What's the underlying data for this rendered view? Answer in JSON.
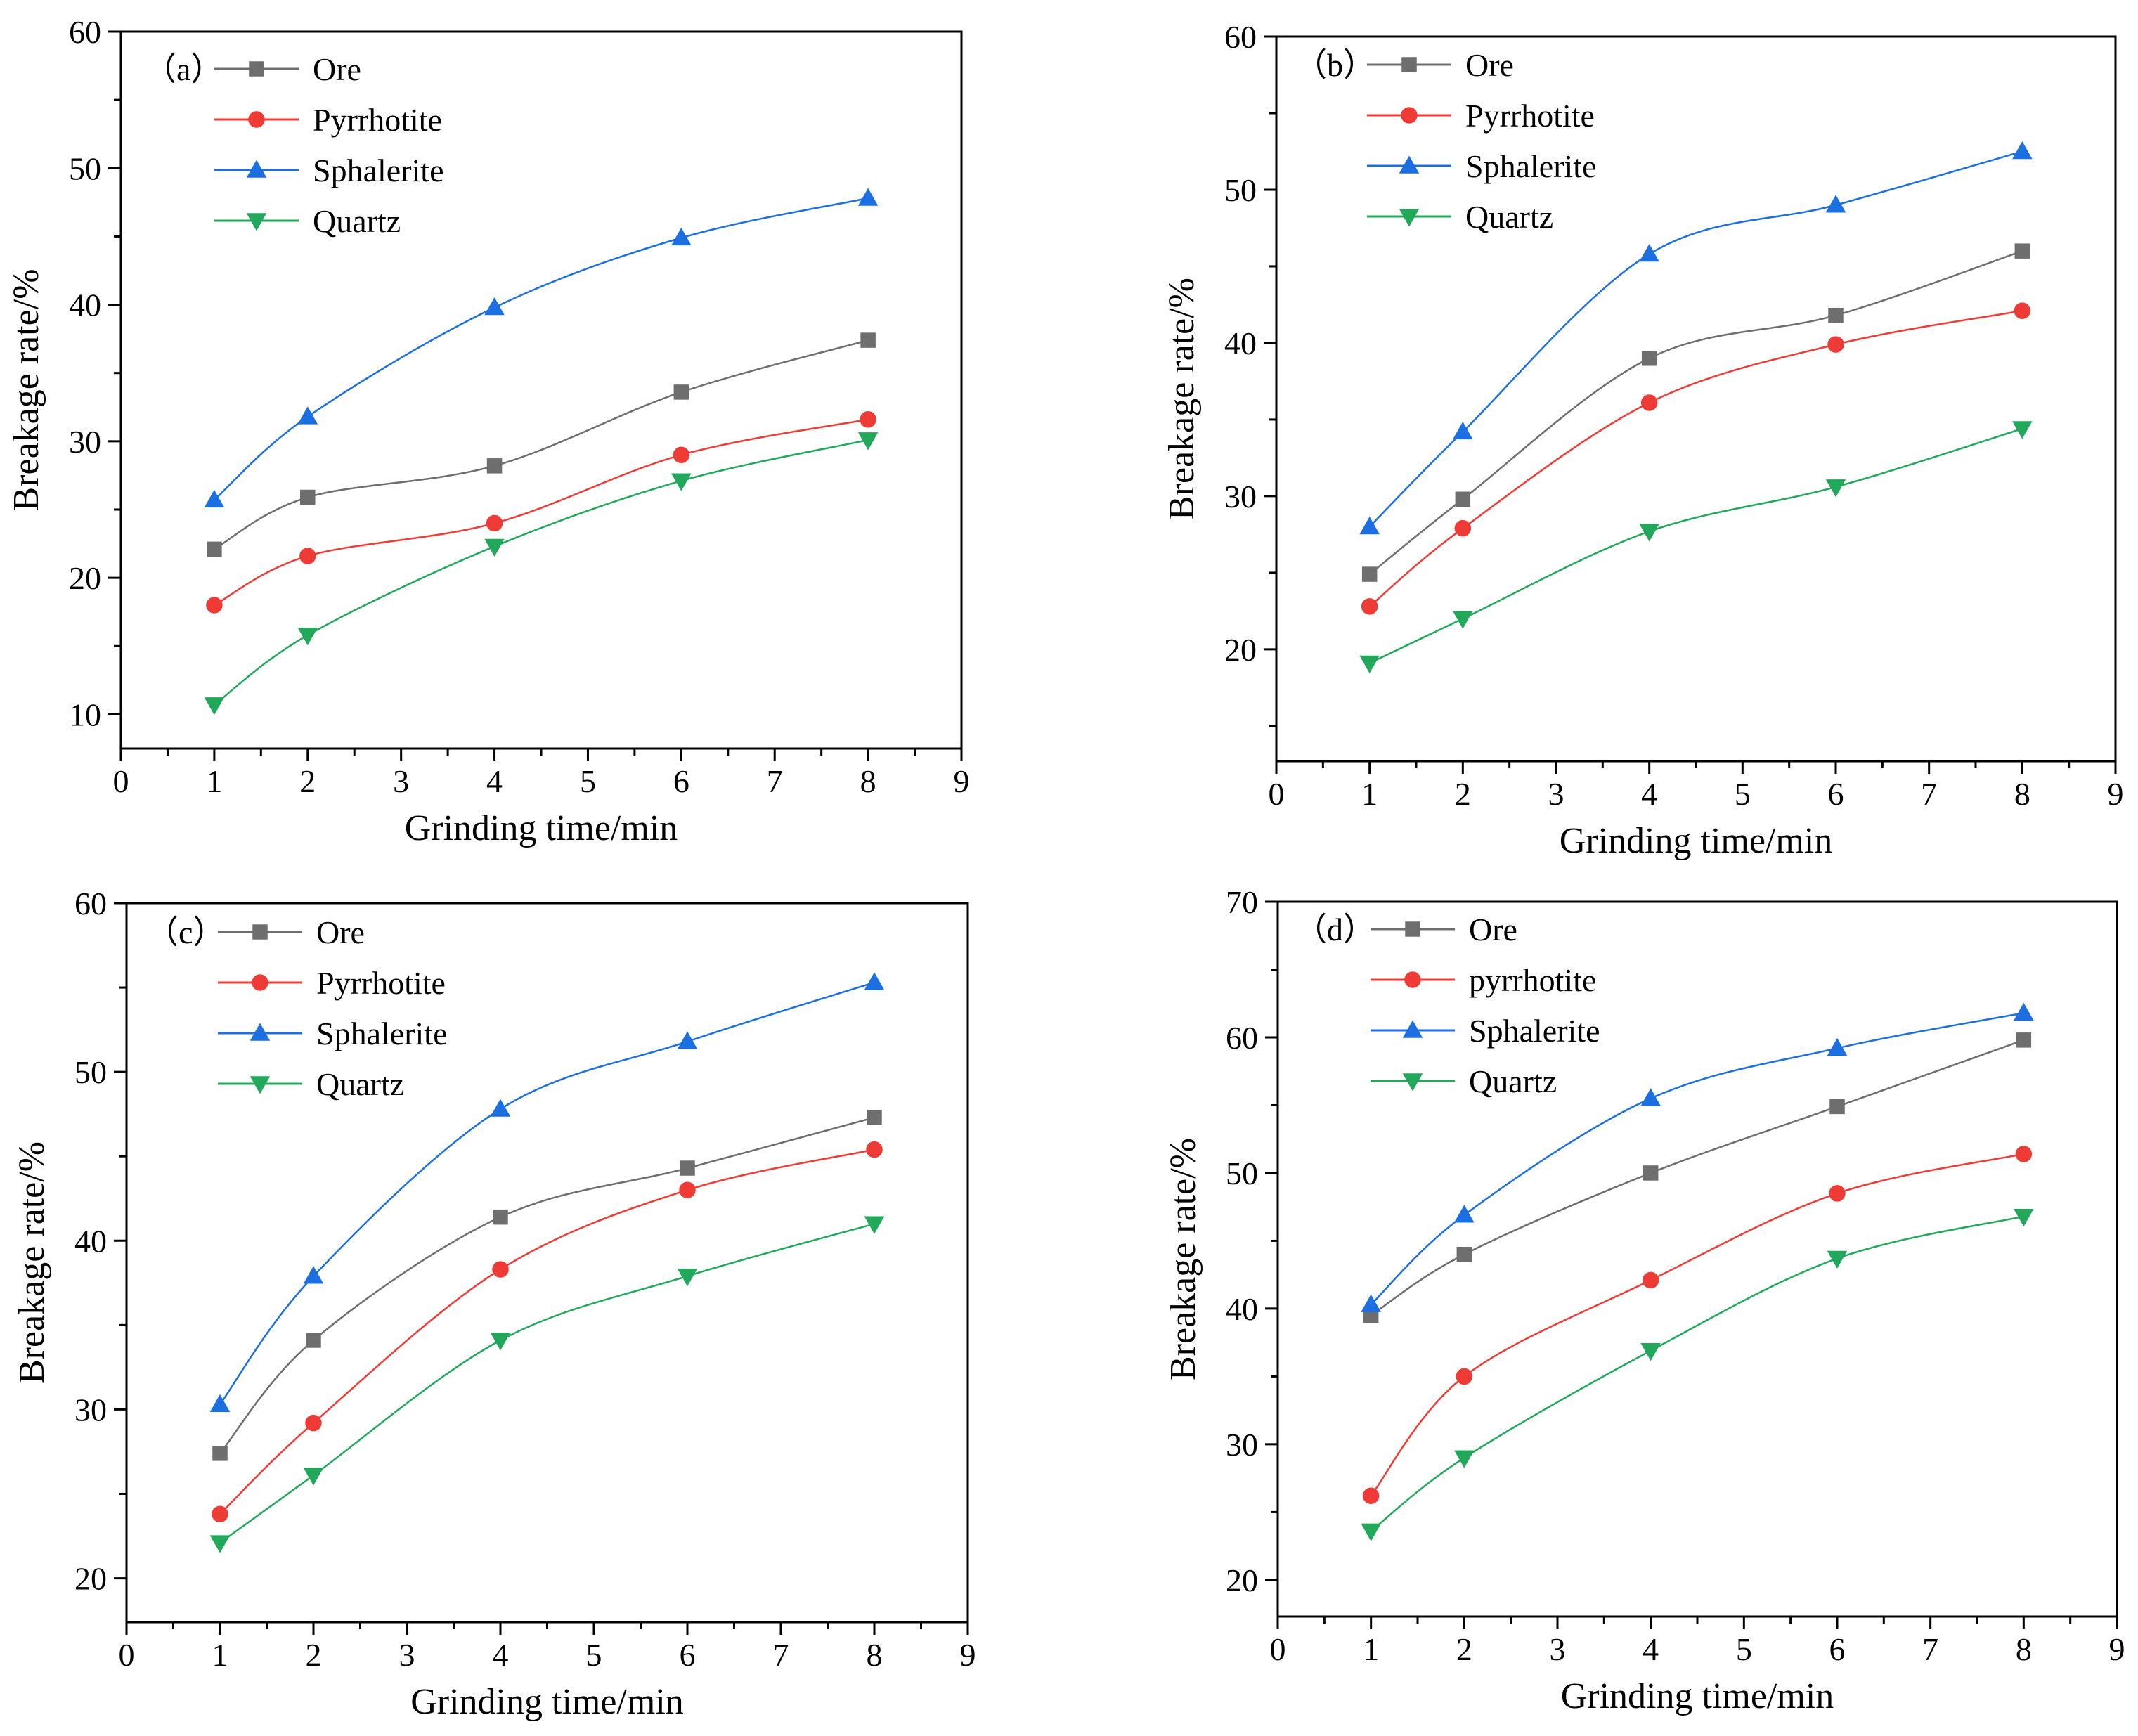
{
  "colors": {
    "Ore": "#6e6e6e",
    "Pyrrhotite": "#ef3b36",
    "Sphalerite": "#1c6fe0",
    "Quartz": "#22a85a"
  },
  "chart_data": [
    {
      "id": "a",
      "type": "line",
      "panel_label": "（a）",
      "xlabel": "Grinding time/min",
      "ylabel": "Breakage rate/%",
      "xlim": [
        0,
        9
      ],
      "ylim": [
        7.5,
        60
      ],
      "xticks": [
        0,
        1,
        2,
        3,
        4,
        5,
        6,
        7,
        8,
        9
      ],
      "yticks": [
        10,
        20,
        30,
        40,
        50,
        60
      ],
      "x": [
        1,
        2,
        4,
        6,
        8
      ],
      "series": [
        {
          "name": "Ore",
          "marker": "square",
          "values": [
            22.1,
            25.9,
            28.2,
            33.6,
            37.4
          ]
        },
        {
          "name": "Pyrrhotite",
          "marker": "circle",
          "values": [
            18.0,
            21.6,
            24.0,
            29.0,
            31.6
          ]
        },
        {
          "name": "Sphalerite",
          "marker": "triangle-up",
          "values": [
            25.7,
            31.8,
            39.8,
            44.9,
            47.8
          ]
        },
        {
          "name": "Quartz",
          "marker": "triangle-down",
          "values": [
            10.7,
            15.8,
            22.3,
            27.1,
            30.1
          ]
        }
      ]
    },
    {
      "id": "b",
      "type": "line",
      "panel_label": "（b）",
      "xlabel": "Grinding time/min",
      "ylabel": "Breakage rate/%",
      "xlim": [
        0,
        9
      ],
      "ylim": [
        12.7,
        60
      ],
      "xticks": [
        0,
        1,
        2,
        3,
        4,
        5,
        6,
        7,
        8,
        9
      ],
      "yticks": [
        20,
        30,
        40,
        50,
        60
      ],
      "x": [
        1,
        2,
        4,
        6,
        8
      ],
      "series": [
        {
          "name": "Ore",
          "marker": "square",
          "values": [
            24.9,
            29.8,
            39.0,
            41.8,
            46.0
          ]
        },
        {
          "name": "Pyrrhotite",
          "marker": "circle",
          "values": [
            22.8,
            27.9,
            36.1,
            39.9,
            42.1
          ]
        },
        {
          "name": "Sphalerite",
          "marker": "triangle-up",
          "values": [
            28.0,
            34.2,
            45.8,
            49.0,
            52.5
          ]
        },
        {
          "name": "Quartz",
          "marker": "triangle-down",
          "values": [
            19.1,
            22.0,
            27.7,
            30.6,
            34.4
          ]
        }
      ]
    },
    {
      "id": "c",
      "type": "line",
      "panel_label": "（c）",
      "xlabel": "Grinding time/min",
      "ylabel": "Breakage rate/%",
      "xlim": [
        0,
        9
      ],
      "ylim": [
        17.4,
        60
      ],
      "xticks": [
        0,
        1,
        2,
        3,
        4,
        5,
        6,
        7,
        8,
        9
      ],
      "yticks": [
        20,
        30,
        40,
        50,
        60
      ],
      "x": [
        1,
        2,
        4,
        6,
        8
      ],
      "series": [
        {
          "name": "Ore",
          "marker": "square",
          "values": [
            27.4,
            34.1,
            41.4,
            44.3,
            47.3
          ]
        },
        {
          "name": "Pyrrhotite",
          "marker": "circle",
          "values": [
            23.8,
            29.2,
            38.3,
            43.0,
            45.4
          ]
        },
        {
          "name": "Sphalerite",
          "marker": "triangle-up",
          "values": [
            30.3,
            37.9,
            47.8,
            51.8,
            55.3
          ]
        },
        {
          "name": "Quartz",
          "marker": "triangle-down",
          "values": [
            22.1,
            26.1,
            34.1,
            37.9,
            41.0
          ]
        }
      ]
    },
    {
      "id": "d",
      "type": "line",
      "panel_label": "（d）",
      "xlabel": "Grinding time/min",
      "ylabel": "Breakage rate/%",
      "xlim": [
        0,
        9
      ],
      "ylim": [
        17.3,
        70
      ],
      "xticks": [
        0,
        1,
        2,
        3,
        4,
        5,
        6,
        7,
        8,
        9
      ],
      "yticks": [
        20,
        30,
        40,
        50,
        60,
        70
      ],
      "x": [
        1,
        2,
        4,
        6,
        8
      ],
      "series": [
        {
          "name": "Ore",
          "label": "Ore",
          "marker": "square",
          "values": [
            39.5,
            44.0,
            50.0,
            54.9,
            59.8
          ]
        },
        {
          "name": "Pyrrhotite",
          "label": "pyrrhotite",
          "marker": "circle",
          "values": [
            26.2,
            35.0,
            42.1,
            48.5,
            51.4
          ]
        },
        {
          "name": "Sphalerite",
          "label": "Sphalerite",
          "marker": "triangle-up",
          "values": [
            40.3,
            46.9,
            55.5,
            59.2,
            61.8
          ]
        },
        {
          "name": "Quartz",
          "label": "Quartz",
          "marker": "triangle-down",
          "values": [
            23.6,
            29.0,
            36.9,
            43.7,
            46.8
          ]
        }
      ]
    }
  ]
}
